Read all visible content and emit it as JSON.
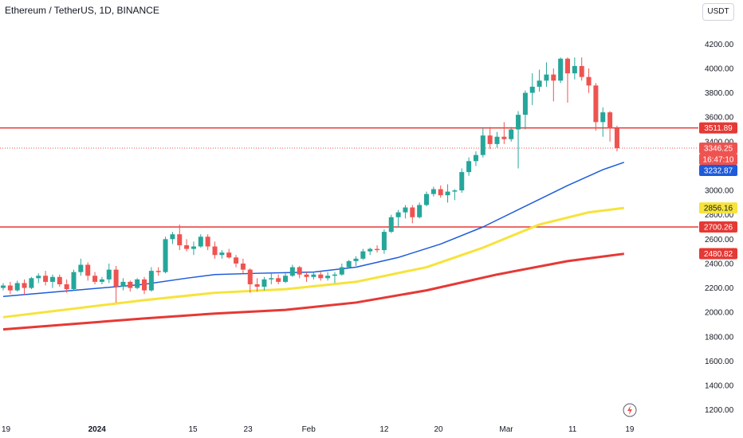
{
  "header": {
    "title": "Ethereum / TetherUS, 1D, BINANCE",
    "currency_label": "USDT"
  },
  "colors": {
    "up": "#26a69a",
    "down": "#ef5350",
    "line_red": "#e53935",
    "ma_blue": "#1e5bdb",
    "ma_yellow": "#f6e33b",
    "ma_red": "#e53935"
  },
  "price_tags": [
    {
      "label": "3511.89",
      "bg": "#e53935",
      "fg": "#ffffff"
    },
    {
      "label": "3346.25",
      "bg": "#ef5350",
      "fg": "#ffffff"
    },
    {
      "label": "16:47:10",
      "bg": "#ef5350",
      "fg": "#ffffff"
    },
    {
      "label": "3232.87",
      "bg": "#1e5bdb",
      "fg": "#ffffff"
    },
    {
      "label": "2856.16",
      "bg": "#f6e33b",
      "fg": "#131722"
    },
    {
      "label": "2700.26",
      "bg": "#e53935",
      "fg": "#ffffff"
    },
    {
      "label": "2480.82",
      "bg": "#e53935",
      "fg": "#ffffff"
    }
  ],
  "chart_data": {
    "type": "candlestick",
    "y_axis": {
      "min": 1100,
      "max": 4300,
      "ticks": [
        "1200.00",
        "1400.00",
        "1600.00",
        "1800.00",
        "2000.00",
        "2200.00",
        "2400.00",
        "2600.00",
        "2800.00",
        "3000.00",
        "3200.00",
        "3400.00",
        "3600.00",
        "3800.00",
        "4000.00",
        "4200.00"
      ]
    },
    "x_axis": {
      "ticks": [
        {
          "label": "19",
          "bold": false
        },
        {
          "label": "2024",
          "bold": true
        },
        {
          "label": "15",
          "bold": false
        },
        {
          "label": "23",
          "bold": false
        },
        {
          "label": "Feb",
          "bold": false
        },
        {
          "label": "12",
          "bold": false
        },
        {
          "label": "20",
          "bold": false
        },
        {
          "label": "Mar",
          "bold": false
        },
        {
          "label": "11",
          "bold": false
        },
        {
          "label": "19",
          "bold": false
        }
      ]
    },
    "horizontal_lines": [
      3511.89,
      2700.26
    ],
    "current_price": 3346.25,
    "countdown": "16:47:10",
    "candles": [
      [
        2200,
        2240,
        2180,
        2220
      ],
      [
        2220,
        2250,
        2150,
        2180
      ],
      [
        2180,
        2260,
        2170,
        2240
      ],
      [
        2240,
        2270,
        2140,
        2200
      ],
      [
        2200,
        2290,
        2190,
        2280
      ],
      [
        2280,
        2320,
        2240,
        2300
      ],
      [
        2300,
        2340,
        2220,
        2250
      ],
      [
        2250,
        2310,
        2200,
        2290
      ],
      [
        2290,
        2310,
        2210,
        2230
      ],
      [
        2230,
        2270,
        2160,
        2190
      ],
      [
        2190,
        2350,
        2180,
        2330
      ],
      [
        2330,
        2440,
        2300,
        2390
      ],
      [
        2390,
        2410,
        2260,
        2300
      ],
      [
        2300,
        2330,
        2230,
        2250
      ],
      [
        2250,
        2290,
        2230,
        2270
      ],
      [
        2270,
        2400,
        2240,
        2350
      ],
      [
        2350,
        2380,
        2080,
        2210
      ],
      [
        2210,
        2280,
        2180,
        2250
      ],
      [
        2250,
        2260,
        2170,
        2200
      ],
      [
        2200,
        2280,
        2190,
        2270
      ],
      [
        2270,
        2290,
        2150,
        2180
      ],
      [
        2180,
        2370,
        2170,
        2340
      ],
      [
        2340,
        2370,
        2300,
        2330
      ],
      [
        2330,
        2620,
        2320,
        2600
      ],
      [
        2600,
        2660,
        2560,
        2640
      ],
      [
        2640,
        2720,
        2510,
        2550
      ],
      [
        2550,
        2600,
        2500,
        2520
      ],
      [
        2520,
        2580,
        2470,
        2540
      ],
      [
        2540,
        2640,
        2530,
        2620
      ],
      [
        2620,
        2640,
        2510,
        2540
      ],
      [
        2540,
        2580,
        2440,
        2470
      ],
      [
        2470,
        2510,
        2440,
        2490
      ],
      [
        2490,
        2520,
        2440,
        2450
      ],
      [
        2450,
        2470,
        2370,
        2400
      ],
      [
        2400,
        2440,
        2320,
        2350
      ],
      [
        2350,
        2360,
        2160,
        2230
      ],
      [
        2230,
        2280,
        2170,
        2210
      ],
      [
        2210,
        2290,
        2180,
        2270
      ],
      [
        2270,
        2320,
        2230,
        2280
      ],
      [
        2280,
        2310,
        2230,
        2250
      ],
      [
        2250,
        2320,
        2240,
        2300
      ],
      [
        2300,
        2390,
        2290,
        2370
      ],
      [
        2370,
        2380,
        2280,
        2310
      ],
      [
        2310,
        2330,
        2250,
        2290
      ],
      [
        2290,
        2330,
        2270,
        2310
      ],
      [
        2310,
        2330,
        2260,
        2280
      ],
      [
        2280,
        2330,
        2260,
        2300
      ],
      [
        2300,
        2330,
        2240,
        2310
      ],
      [
        2310,
        2400,
        2300,
        2370
      ],
      [
        2370,
        2430,
        2360,
        2420
      ],
      [
        2420,
        2460,
        2380,
        2440
      ],
      [
        2440,
        2520,
        2430,
        2500
      ],
      [
        2500,
        2530,
        2470,
        2520
      ],
      [
        2520,
        2550,
        2490,
        2510
      ],
      [
        2510,
        2680,
        2480,
        2660
      ],
      [
        2660,
        2800,
        2650,
        2780
      ],
      [
        2780,
        2840,
        2700,
        2820
      ],
      [
        2820,
        2880,
        2770,
        2860
      ],
      [
        2860,
        2880,
        2730,
        2780
      ],
      [
        2780,
        2900,
        2770,
        2880
      ],
      [
        2880,
        2990,
        2870,
        2970
      ],
      [
        2970,
        3030,
        2950,
        3010
      ],
      [
        3010,
        3040,
        2940,
        2960
      ],
      [
        2960,
        3050,
        2900,
        2990
      ],
      [
        2990,
        3010,
        2920,
        3000
      ],
      [
        3000,
        3180,
        2980,
        3150
      ],
      [
        3150,
        3270,
        3120,
        3240
      ],
      [
        3240,
        3320,
        3200,
        3290
      ],
      [
        3290,
        3510,
        3270,
        3450
      ],
      [
        3450,
        3520,
        3340,
        3380
      ],
      [
        3380,
        3480,
        3350,
        3440
      ],
      [
        3440,
        3560,
        3380,
        3420
      ],
      [
        3420,
        3520,
        3400,
        3500
      ],
      [
        3500,
        3650,
        3180,
        3620
      ],
      [
        3620,
        3820,
        3500,
        3800
      ],
      [
        3800,
        3960,
        3700,
        3850
      ],
      [
        3850,
        3990,
        3810,
        3900
      ],
      [
        3900,
        4050,
        3850,
        3950
      ],
      [
        3950,
        4000,
        3730,
        3900
      ],
      [
        3900,
        4090,
        3880,
        4080
      ],
      [
        4080,
        4090,
        3720,
        3960
      ],
      [
        3960,
        4090,
        3910,
        4020
      ],
      [
        4020,
        4090,
        3900,
        3930
      ],
      [
        3930,
        4000,
        3800,
        3860
      ],
      [
        3860,
        3880,
        3490,
        3560
      ],
      [
        3560,
        3680,
        3440,
        3640
      ],
      [
        3640,
        3650,
        3400,
        3510
      ],
      [
        3510,
        3530,
        3320,
        3346
      ]
    ],
    "ma_blue": [
      [
        0,
        2130
      ],
      [
        20,
        2230
      ],
      [
        26,
        2280
      ],
      [
        30,
        2310
      ],
      [
        36,
        2320
      ],
      [
        44,
        2330
      ],
      [
        50,
        2370
      ],
      [
        56,
        2450
      ],
      [
        62,
        2560
      ],
      [
        68,
        2700
      ],
      [
        74,
        2870
      ],
      [
        80,
        3040
      ],
      [
        85,
        3170
      ],
      [
        88,
        3230
      ]
    ],
    "ma_yellow": [
      [
        0,
        1960
      ],
      [
        20,
        2100
      ],
      [
        30,
        2160
      ],
      [
        40,
        2190
      ],
      [
        50,
        2250
      ],
      [
        60,
        2370
      ],
      [
        68,
        2530
      ],
      [
        76,
        2720
      ],
      [
        83,
        2820
      ],
      [
        88,
        2856
      ]
    ],
    "ma_red": [
      [
        0,
        1860
      ],
      [
        20,
        1950
      ],
      [
        30,
        1990
      ],
      [
        40,
        2020
      ],
      [
        50,
        2080
      ],
      [
        60,
        2180
      ],
      [
        70,
        2310
      ],
      [
        80,
        2420
      ],
      [
        88,
        2480
      ]
    ]
  }
}
